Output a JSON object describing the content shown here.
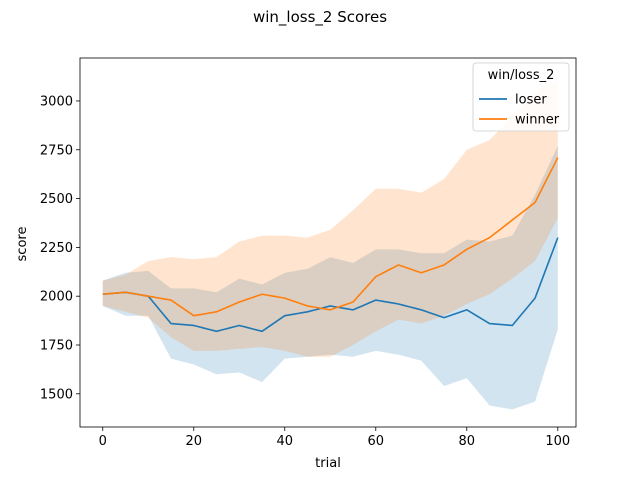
{
  "chart_data": {
    "type": "line",
    "title": "win_loss_2 Scores",
    "xlabel": "trial",
    "ylabel": "score",
    "xlim": [
      -5,
      104
    ],
    "ylim": [
      1330,
      3220
    ],
    "xticks": [
      0,
      20,
      40,
      60,
      80,
      100
    ],
    "yticks": [
      1500,
      1750,
      2000,
      2250,
      2500,
      2750,
      3000
    ],
    "grid": false,
    "legend": {
      "title": "win/loss_2",
      "placement": "top-right"
    },
    "series": [
      {
        "name": "loser",
        "color": "#1f77b4",
        "x": [
          0,
          5,
          10,
          15,
          20,
          25,
          30,
          35,
          40,
          45,
          50,
          55,
          60,
          65,
          70,
          75,
          80,
          85,
          90,
          95,
          100
        ],
        "values": [
          2010,
          2020,
          2000,
          1860,
          1850,
          1820,
          1850,
          1820,
          1900,
          1920,
          1950,
          1930,
          1980,
          1960,
          1930,
          1890,
          1930,
          1860,
          1850,
          1990,
          2300
        ],
        "lower": [
          1950,
          1900,
          1900,
          1680,
          1650,
          1600,
          1610,
          1560,
          1680,
          1690,
          1700,
          1690,
          1720,
          1700,
          1670,
          1540,
          1580,
          1440,
          1420,
          1460,
          1830
        ],
        "upper": [
          2080,
          2120,
          2130,
          2040,
          2040,
          2020,
          2090,
          2060,
          2120,
          2140,
          2200,
          2170,
          2240,
          2240,
          2220,
          2220,
          2290,
          2280,
          2310,
          2520,
          2770
        ]
      },
      {
        "name": "winner",
        "color": "#ff7f0e",
        "x": [
          0,
          5,
          10,
          15,
          20,
          25,
          30,
          35,
          40,
          45,
          50,
          55,
          60,
          65,
          70,
          75,
          80,
          85,
          90,
          95,
          100
        ],
        "values": [
          2010,
          2020,
          2000,
          1980,
          1900,
          1920,
          1970,
          2010,
          1990,
          1950,
          1930,
          1970,
          2100,
          2160,
          2120,
          2160,
          2240,
          2300,
          2390,
          2480,
          2710
        ],
        "lower": [
          1950,
          1920,
          1890,
          1790,
          1720,
          1720,
          1730,
          1740,
          1720,
          1690,
          1690,
          1750,
          1820,
          1880,
          1860,
          1900,
          1960,
          2010,
          2090,
          2180,
          2400
        ],
        "upper": [
          2080,
          2110,
          2180,
          2200,
          2190,
          2200,
          2280,
          2310,
          2310,
          2300,
          2340,
          2440,
          2550,
          2550,
          2530,
          2600,
          2750,
          2800,
          2920,
          3050,
          3110
        ]
      }
    ]
  }
}
